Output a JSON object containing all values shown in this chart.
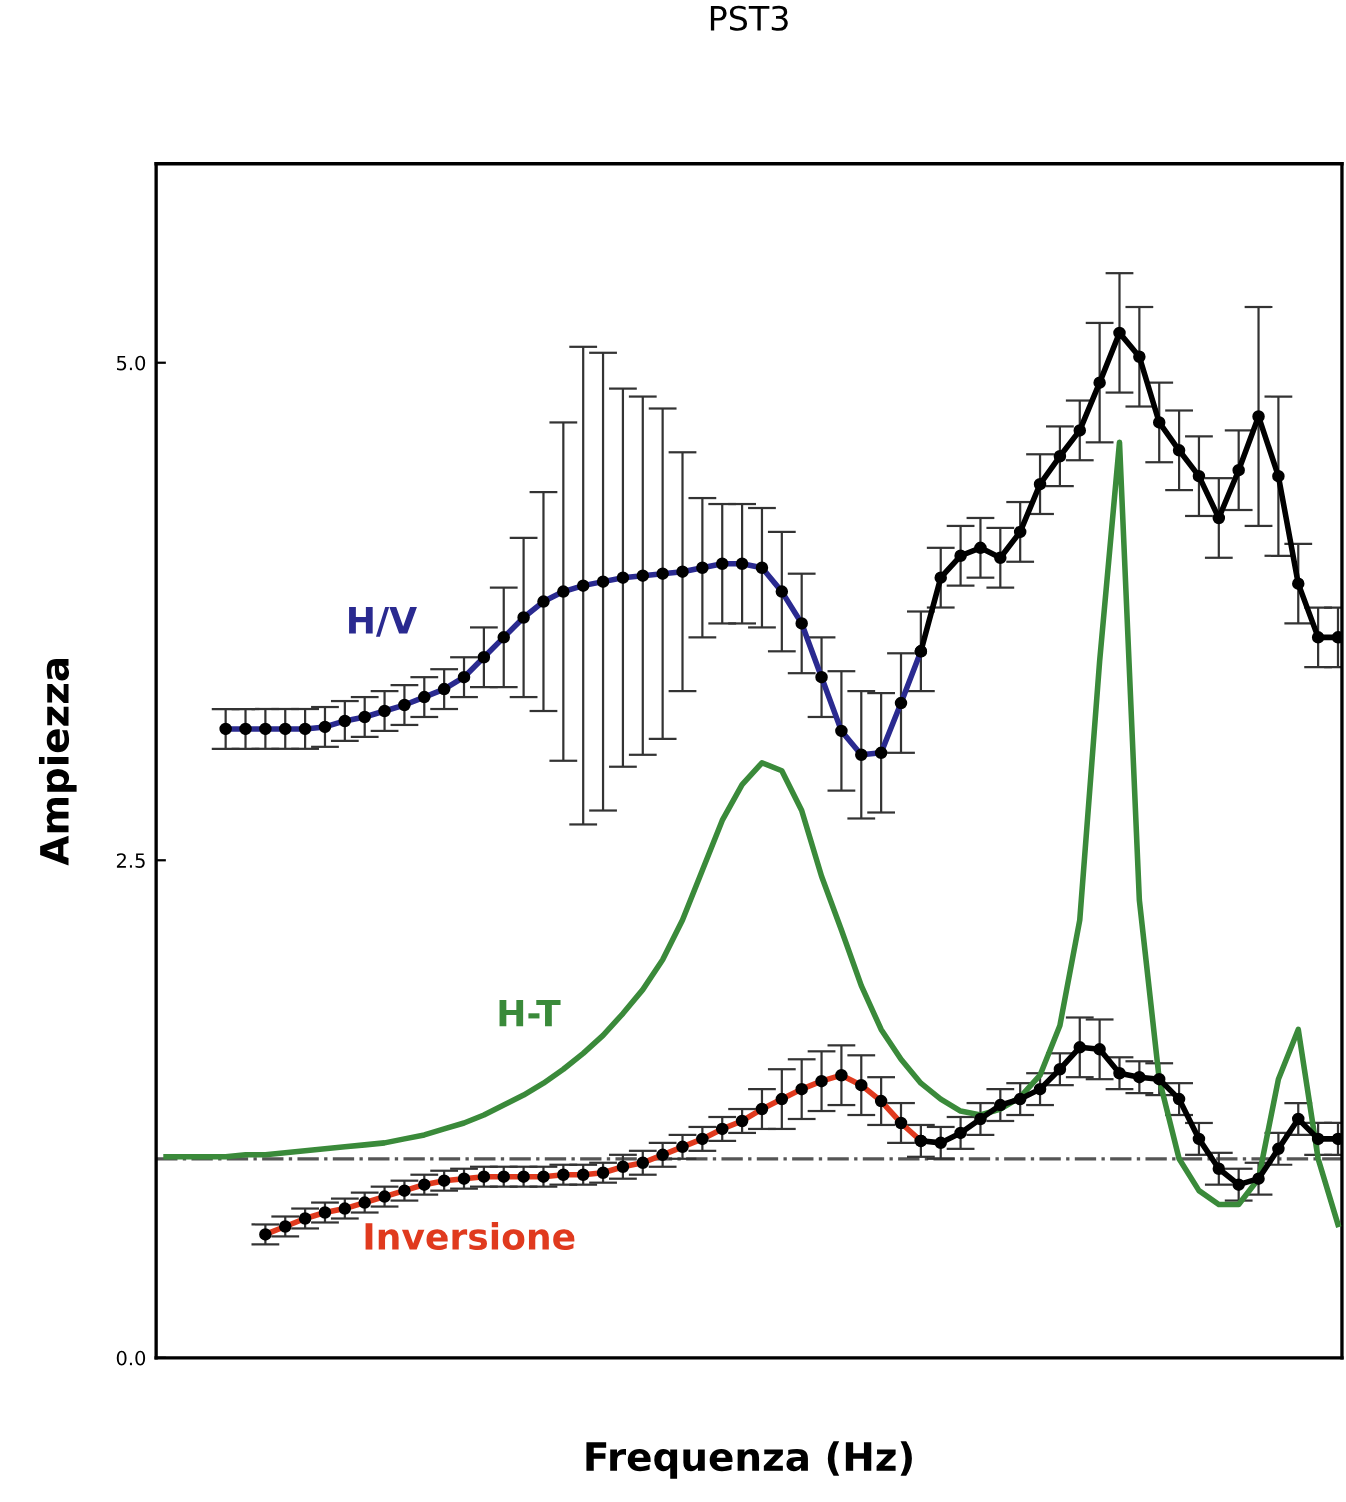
{
  "chart_data": {
    "type": "line",
    "title": "PST3",
    "xlabel": "Frequenza (Hz)",
    "ylabel": "Ampiezza",
    "categories": [
      null,
      null,
      null,
      null,
      null,
      null,
      null,
      null,
      null,
      null,
      null,
      null,
      null,
      null,
      null,
      null,
      null,
      null,
      null,
      null,
      null,
      null,
      null,
      null,
      null,
      null,
      null,
      null,
      null,
      null,
      null,
      null,
      null,
      null,
      null,
      null,
      null,
      null,
      null,
      null,
      null,
      null,
      null,
      null,
      null,
      null,
      null,
      null,
      null,
      null,
      null,
      null,
      null,
      null,
      null,
      null,
      null,
      null,
      null,
      null
    ],
    "ylim": [
      0,
      6
    ],
    "yticks": [
      {
        "value": 0,
        "label": "0.0"
      },
      {
        "value": 2.5,
        "label": "2.5"
      },
      {
        "value": 5,
        "label": "5.0"
      }
    ],
    "grid": false,
    "legend": false,
    "ref_lines": [
      {
        "axis": "y",
        "value": 1,
        "color": "#555555",
        "line_style": "dashdot"
      }
    ],
    "series": [
      {
        "name": "H/V",
        "color": "#2a2a90",
        "marker": "circle",
        "values": [
          null,
          null,
          null,
          3.16,
          3.16,
          3.16,
          3.16,
          3.16,
          3.17,
          3.2,
          3.22,
          3.25,
          3.28,
          3.32,
          3.36,
          3.42,
          3.52,
          3.62,
          3.72,
          3.8,
          3.85,
          3.88,
          3.9,
          3.92,
          3.93,
          3.94,
          3.95,
          3.97,
          3.99,
          3.99,
          3.97,
          3.85,
          3.69,
          3.42,
          3.15,
          3.03,
          3.04,
          3.29,
          3.55,
          null,
          null,
          null,
          null,
          null,
          null,
          null,
          null,
          null,
          null,
          null,
          null,
          null,
          null,
          null,
          null,
          null,
          null,
          null,
          null,
          null
        ],
        "errors": [
          null,
          null,
          null,
          0.1,
          0.1,
          0.1,
          0.1,
          0.1,
          0.1,
          0.1,
          0.1,
          0.1,
          0.1,
          0.1,
          0.1,
          0.1,
          0.15,
          0.25,
          0.4,
          0.55,
          0.85,
          1.2,
          1.15,
          0.95,
          0.9,
          0.83,
          0.6,
          0.35,
          0.3,
          0.3,
          0.3,
          0.3,
          0.25,
          0.2,
          0.3,
          0.32,
          0.3,
          0.25,
          0.2,
          null,
          null,
          null,
          null,
          null,
          null,
          null,
          null,
          null,
          null,
          null,
          null,
          null,
          null,
          null,
          null,
          null,
          null,
          null,
          null,
          null
        ]
      },
      {
        "color": "#000000",
        "marker": "circle",
        "values": [
          null,
          null,
          null,
          null,
          null,
          null,
          null,
          null,
          null,
          null,
          null,
          null,
          null,
          null,
          null,
          null,
          null,
          null,
          null,
          null,
          null,
          null,
          null,
          null,
          null,
          null,
          null,
          null,
          null,
          null,
          null,
          null,
          null,
          null,
          null,
          null,
          null,
          null,
          3.55,
          3.92,
          4.03,
          4.07,
          4.02,
          4.15,
          4.39,
          4.53,
          4.66,
          4.9,
          5.15,
          5.03,
          4.7,
          4.56,
          4.43,
          4.22,
          4.46,
          4.73,
          4.43,
          3.89,
          3.62,
          3.62
        ],
        "errors": [
          null,
          null,
          null,
          null,
          null,
          null,
          null,
          null,
          null,
          null,
          null,
          null,
          null,
          null,
          null,
          null,
          null,
          null,
          null,
          null,
          null,
          null,
          null,
          null,
          null,
          null,
          null,
          null,
          null,
          null,
          null,
          null,
          null,
          null,
          null,
          null,
          null,
          null,
          null,
          0.15,
          0.15,
          0.15,
          0.15,
          0.15,
          0.15,
          0.15,
          0.15,
          0.3,
          0.3,
          0.25,
          0.2,
          0.2,
          0.2,
          0.2,
          0.2,
          0.55,
          0.4,
          0.2,
          0.15,
          0.15
        ]
      },
      {
        "name": "H-T",
        "color": "#3a8a3a",
        "marker": "none",
        "values": [
          1.01,
          1.01,
          1.01,
          1.01,
          1.02,
          1.02,
          1.03,
          1.04,
          1.05,
          1.06,
          1.07,
          1.08,
          1.1,
          1.12,
          1.15,
          1.18,
          1.22,
          1.27,
          1.32,
          1.38,
          1.45,
          1.53,
          1.62,
          1.73,
          1.85,
          2.0,
          2.2,
          2.45,
          2.7,
          2.88,
          2.99,
          2.95,
          2.75,
          2.42,
          2.15,
          1.87,
          1.65,
          1.5,
          1.38,
          1.3,
          1.24,
          1.22,
          1.25,
          1.31,
          1.42,
          1.67,
          2.2,
          3.5,
          4.6,
          2.3,
          1.4,
          1.0,
          0.84,
          0.77,
          0.77,
          0.9,
          1.4,
          1.65,
          1.0,
          0.67
        ]
      },
      {
        "name": "Inversione",
        "color": "#e03a1e",
        "marker": "circle",
        "values": [
          null,
          null,
          null,
          null,
          null,
          0.62,
          0.66,
          0.7,
          0.73,
          0.75,
          0.78,
          0.81,
          0.84,
          0.87,
          0.89,
          0.9,
          0.91,
          0.91,
          0.91,
          0.91,
          0.92,
          0.92,
          0.93,
          0.96,
          0.98,
          1.02,
          1.06,
          1.1,
          1.15,
          1.19,
          1.25,
          1.3,
          1.35,
          1.39,
          1.42,
          1.37,
          1.29,
          1.18,
          1.09,
          null,
          null,
          null,
          null,
          null,
          null,
          null,
          null,
          null,
          null,
          null,
          null,
          null,
          null,
          null,
          null,
          null,
          null,
          null,
          null,
          null
        ],
        "errors": [
          null,
          null,
          null,
          null,
          null,
          0.05,
          0.05,
          0.05,
          0.05,
          0.05,
          0.05,
          0.05,
          0.05,
          0.05,
          0.05,
          0.05,
          0.05,
          0.05,
          0.05,
          0.05,
          0.05,
          0.05,
          0.05,
          0.06,
          0.06,
          0.06,
          0.06,
          0.06,
          0.06,
          0.06,
          0.1,
          0.15,
          0.15,
          0.15,
          0.15,
          0.15,
          0.12,
          0.1,
          0.08,
          null,
          null,
          null,
          null,
          null,
          null,
          null,
          null,
          null,
          null,
          null,
          null,
          null,
          null,
          null,
          null,
          null,
          null,
          null,
          null,
          null
        ]
      },
      {
        "color": "#000000",
        "marker": "circle",
        "values": [
          null,
          null,
          null,
          null,
          null,
          null,
          null,
          null,
          null,
          null,
          null,
          null,
          null,
          null,
          null,
          null,
          null,
          null,
          null,
          null,
          null,
          null,
          null,
          null,
          null,
          null,
          null,
          null,
          null,
          null,
          null,
          null,
          null,
          null,
          null,
          null,
          null,
          null,
          1.09,
          1.08,
          1.13,
          1.2,
          1.27,
          1.3,
          1.35,
          1.45,
          1.56,
          1.55,
          1.43,
          1.41,
          1.4,
          1.3,
          1.1,
          0.95,
          0.87,
          0.9,
          1.05,
          1.2,
          1.1,
          1.1
        ],
        "errors": [
          null,
          null,
          null,
          null,
          null,
          null,
          null,
          null,
          null,
          null,
          null,
          null,
          null,
          null,
          null,
          null,
          null,
          null,
          null,
          null,
          null,
          null,
          null,
          null,
          null,
          null,
          null,
          null,
          null,
          null,
          null,
          null,
          null,
          null,
          null,
          null,
          null,
          null,
          null,
          0.08,
          0.08,
          0.08,
          0.08,
          0.08,
          0.08,
          0.08,
          0.15,
          0.15,
          0.08,
          0.08,
          0.08,
          0.08,
          0.08,
          0.08,
          0.08,
          0.08,
          0.08,
          0.08,
          0.08,
          0.08
        ]
      }
    ]
  }
}
